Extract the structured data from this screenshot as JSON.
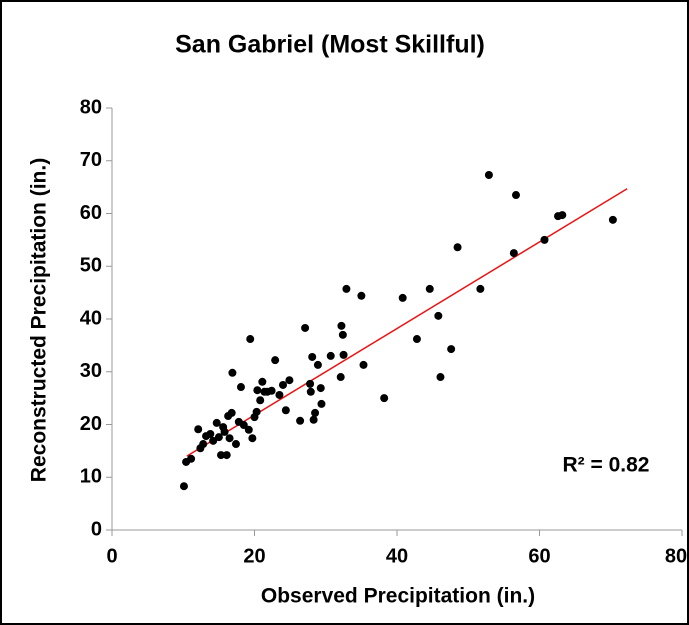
{
  "chart_data": {
    "type": "scatter",
    "title": "San Gabriel (Most Skillful)",
    "x_label": "Observed Precipitation (in.)",
    "y_label": "Reconstructed Precipitation (in.)",
    "annotation": "R² = 0.82",
    "annotation_color": "#ee1111",
    "xlim": [
      0,
      80
    ],
    "ylim": [
      0,
      80
    ],
    "xticks": [
      0,
      20,
      40,
      60,
      80
    ],
    "yticks": [
      0,
      10,
      20,
      30,
      40,
      50,
      60,
      70,
      80
    ],
    "grid": false,
    "series": [
      {
        "color": "#000000",
        "x": [
          10.1,
          10.4,
          11.1,
          12.1,
          12.4,
          12.8,
          13.2,
          13.8,
          14.2,
          14.7,
          15.0,
          15.3,
          15.6,
          15.8,
          16.1,
          16.3,
          16.5,
          16.8,
          16.9,
          17.4,
          17.8,
          18.1,
          18.5,
          19.2,
          19.4,
          19.7,
          20.0,
          20.3,
          20.4,
          20.8,
          21.1,
          21.4,
          21.8,
          22.4,
          22.9,
          23.5,
          24.0,
          24.4,
          24.9,
          26.4,
          27.1,
          27.8,
          28.1,
          27.9,
          28.3,
          28.5,
          28.9,
          29.3,
          29.4,
          30.7,
          32.1,
          32.2,
          32.4,
          32.5,
          32.9,
          35.0,
          35.3,
          38.2,
          40.8,
          42.8,
          44.6,
          45.8,
          46.1,
          47.6,
          48.5,
          51.7,
          52.9,
          56.4,
          56.7,
          60.7,
          62.6,
          63.2,
          70.3
        ],
        "values": [
          8.3,
          12.9,
          13.5,
          19.1,
          15.5,
          16.3,
          17.8,
          18.2,
          16.9,
          20.3,
          17.6,
          14.2,
          19.5,
          18.6,
          14.2,
          21.6,
          17.4,
          22.2,
          29.8,
          16.3,
          20.5,
          27.1,
          19.9,
          19.0,
          36.2,
          17.4,
          21.4,
          22.4,
          26.5,
          24.6,
          28.1,
          26.2,
          26.2,
          26.4,
          32.2,
          25.6,
          27.5,
          22.7,
          28.4,
          20.7,
          38.3,
          27.7,
          32.8,
          26.2,
          20.9,
          22.2,
          31.3,
          26.9,
          23.9,
          33.0,
          29.0,
          38.7,
          37.0,
          33.2,
          45.7,
          44.4,
          31.3,
          25.0,
          44.0,
          36.2,
          45.7,
          40.6,
          29.0,
          34.3,
          53.6,
          45.7,
          67.3,
          52.5,
          63.5,
          55.0,
          59.5,
          59.7,
          58.8
        ]
      }
    ],
    "trendline": {
      "x": [
        10.5,
        72.3
      ],
      "values": [
        14.0,
        64.7
      ],
      "color": "#ee1111"
    }
  }
}
